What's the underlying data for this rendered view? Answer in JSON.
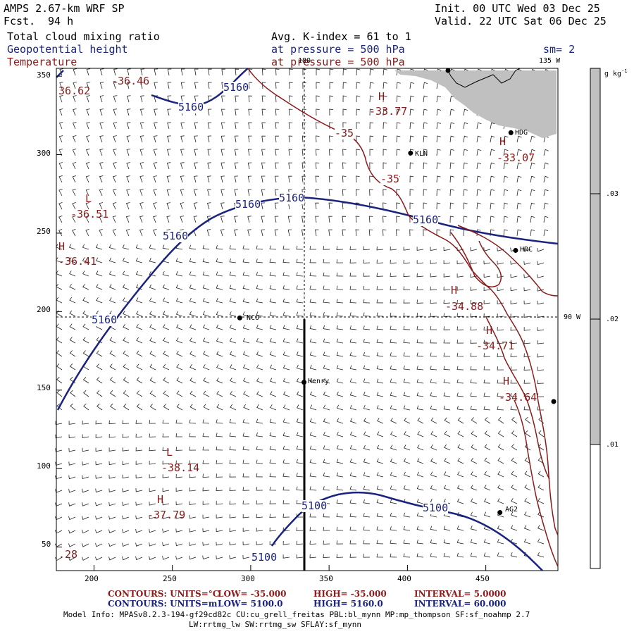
{
  "header": {
    "model": "AMPS 2.67-km WRF SP",
    "fcst_label": "Fcst.",
    "fcst_value": "94 h",
    "init": "Init. 00 UTC Wed 03 Dec 25",
    "valid": "Valid. 22 UTC Sat 06 Dec 25"
  },
  "fields": {
    "f1": "Total cloud mixing ratio",
    "f1_right": "Avg. K-index =  61 to   1",
    "f2": "Geopotential height",
    "f2_right": "at pressure =  500 hPa",
    "f3": "Temperature",
    "f3_right": "at pressure =  500 hPa",
    "sm": "sm= 2"
  },
  "axes": {
    "x_ticks": [
      "200",
      "250",
      "300",
      "350",
      "400",
      "450"
    ],
    "y_ticks": [
      "350",
      "300",
      "250",
      "200",
      "150",
      "100",
      "50"
    ],
    "x_range": [
      176,
      496
    ],
    "y_range": [
      35,
      355
    ]
  },
  "meridians": {
    "m180": "180",
    "m135": "135 W",
    "m90": "90 W"
  },
  "colorbar": {
    "unit": "g kg",
    "unit_sup": "-1",
    "labels": [
      ".03",
      ".02",
      ".01"
    ]
  },
  "stations": [
    {
      "name": "KLN",
      "x": 402,
      "y": 301
    },
    {
      "name": "HDG",
      "x": 466,
      "y": 314
    },
    {
      "name": "HRC",
      "x": 469,
      "y": 239
    },
    {
      "name": "NCO",
      "x": 293,
      "y": 196
    },
    {
      "name": "Henry",
      "x": 334,
      "y": 155
    },
    {
      "name": "AG2",
      "x": 459,
      "y": 72
    }
  ],
  "height_labels": [
    "5160",
    "5160",
    "5160",
    "5160",
    "5160",
    "5160",
    "5160",
    "5100",
    "5100",
    "5100"
  ],
  "temp_labels": {
    "h1": "H",
    "v1": "-33.77",
    "h2": "H",
    "v2": "-33.07",
    "h3": "L",
    "v3": "-36.51",
    "h4": "H",
    "v4": "-36.41",
    "h5": "H",
    "v5": "-34.88",
    "h6": "H",
    "v6": "-34.71",
    "h7": "H",
    "v7": "-34.64",
    "h8": "L",
    "v8": "-38.14",
    "h9": "H",
    "v9": "-37.79",
    "c1": "-35",
    "c2": "-35",
    "e1": "-36.46",
    "e2": "36.62",
    "e3": ".28"
  },
  "footer": {
    "temp_units": "CONTOURS:  UNITS=°C",
    "temp_low": "LOW= -35.000",
    "temp_high": "HIGH= -35.000",
    "temp_int": "INTERVAL=   5.0000",
    "hgt_units": "CONTOURS:  UNITS=m",
    "hgt_low": "LOW=  5100.0",
    "hgt_high": "HIGH=  5160.0",
    "hgt_int": "INTERVAL=   60.000",
    "model_info": "Model Info: MPASv8.2.3-194-gf29cd82c CU:cu_grell_freitas PBL:bl_mynn MP:mp_thompson SF:sf_noahmp 2.7",
    "model_info2": "LW:rrtmg_lw SW:rrtmg_sw SFLAY:sf_mynn"
  },
  "colors": {
    "height": "#1a237e",
    "temperature": "#8b1a1a",
    "cloud": "#c0c0c0",
    "station": "#000000"
  }
}
